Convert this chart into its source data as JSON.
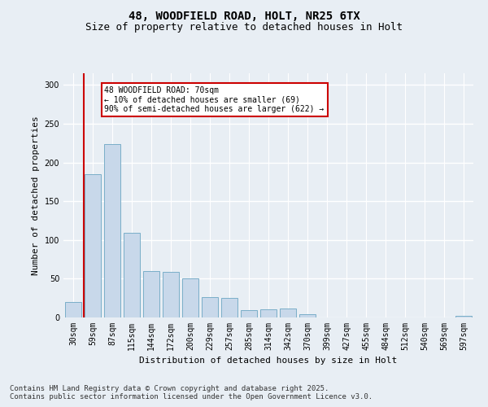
{
  "title_line1": "48, WOODFIELD ROAD, HOLT, NR25 6TX",
  "title_line2": "Size of property relative to detached houses in Holt",
  "xlabel": "Distribution of detached houses by size in Holt",
  "ylabel": "Number of detached properties",
  "categories": [
    "30sqm",
    "59sqm",
    "87sqm",
    "115sqm",
    "144sqm",
    "172sqm",
    "200sqm",
    "229sqm",
    "257sqm",
    "285sqm",
    "314sqm",
    "342sqm",
    "370sqm",
    "399sqm",
    "427sqm",
    "455sqm",
    "484sqm",
    "512sqm",
    "540sqm",
    "569sqm",
    "597sqm"
  ],
  "values": [
    20,
    185,
    224,
    109,
    60,
    59,
    50,
    26,
    25,
    9,
    11,
    12,
    4,
    0,
    0,
    0,
    0,
    0,
    0,
    0,
    2
  ],
  "bar_color": "#c8d8ea",
  "bar_edgecolor": "#7aaec8",
  "bg_color": "#e8eef4",
  "plot_bg_color": "#e8eef4",
  "vline_x": 1,
  "vline_color": "#cc0000",
  "annotation_text": "48 WOODFIELD ROAD: 70sqm\n← 10% of detached houses are smaller (69)\n90% of semi-detached houses are larger (622) →",
  "annotation_box_facecolor": "#ffffff",
  "annotation_box_edgecolor": "#cc0000",
  "ylim": [
    0,
    315
  ],
  "yticks": [
    0,
    50,
    100,
    150,
    200,
    250,
    300
  ],
  "footnote": "Contains HM Land Registry data © Crown copyright and database right 2025.\nContains public sector information licensed under the Open Government Licence v3.0.",
  "title_fontsize": 10,
  "subtitle_fontsize": 9,
  "axis_label_fontsize": 8,
  "ylabel_fontsize": 8,
  "tick_fontsize": 7,
  "annotation_fontsize": 7,
  "footnote_fontsize": 6.5
}
